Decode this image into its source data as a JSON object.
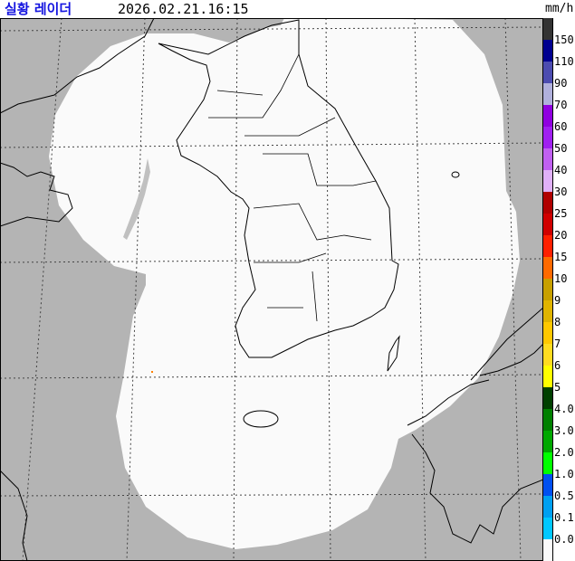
{
  "header": {
    "title": "실황 레이더",
    "timestamp": "2026.02.21.16:15",
    "unit": "mm/h"
  },
  "map": {
    "background_color": "#b4b4b4",
    "coverage_color": "#fafafa",
    "coastline_color": "#000000",
    "grid_style": "dashed"
  },
  "legend": {
    "colors": [
      "#333333",
      "#000090",
      "#4c4cb0",
      "#b0b0dc",
      "#9000e0",
      "#a020f0",
      "#c060f0",
      "#e0b0f8",
      "#b00000",
      "#d00000",
      "#ff2000",
      "#ff6a00",
      "#c8a000",
      "#e0b400",
      "#ffc800",
      "#ffdc20",
      "#ffff00",
      "#004000",
      "#008000",
      "#00a800",
      "#00ff00",
      "#0050f0",
      "#00a0f0",
      "#00c8ff",
      "#fafafa"
    ],
    "labels": [
      "150",
      "110",
      "90",
      "70",
      "60",
      "50",
      "40",
      "30",
      "25",
      "20",
      "15",
      "10",
      "9",
      "8",
      "7",
      "6",
      "5",
      "4.0",
      "3.0",
      "2.0",
      "1.0",
      "0.5",
      "0.1",
      "0.0"
    ]
  }
}
